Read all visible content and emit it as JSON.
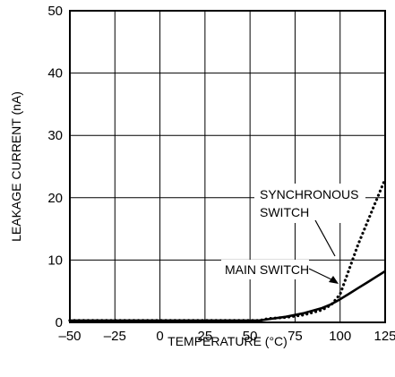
{
  "chart_data": {
    "type": "line",
    "title": "",
    "xlabel": "TEMPERATURE (°C)",
    "ylabel": "LEAKAGE CURRENT (nA)",
    "xlim": [
      -50,
      125
    ],
    "ylim": [
      0,
      50
    ],
    "xticks": [
      -50,
      -25,
      0,
      25,
      50,
      75,
      100,
      125
    ],
    "xtick_labels": [
      "–50",
      "–25",
      "0",
      "25",
      "50",
      "75",
      "100",
      "125"
    ],
    "yticks": [
      0,
      10,
      20,
      30,
      40,
      50
    ],
    "ytick_labels": [
      "0",
      "10",
      "20",
      "30",
      "40",
      "50"
    ],
    "grid": true,
    "legend": "none",
    "series": [
      {
        "name": "SYNCHRONOUS SWITCH",
        "style": "dotted",
        "x": [
          -50,
          0,
          50,
          55,
          60,
          70,
          80,
          90,
          95,
          100,
          105,
          110,
          115,
          120,
          125
        ],
        "y": [
          0.3,
          0.3,
          0.3,
          0.3,
          0.6,
          0.8,
          1.2,
          2.0,
          2.8,
          4.5,
          8.5,
          12.5,
          16.0,
          19.5,
          23.0
        ]
      },
      {
        "name": "MAIN SWITCH",
        "style": "solid",
        "x": [
          -50,
          0,
          50,
          55,
          60,
          70,
          80,
          90,
          95,
          100,
          105,
          110,
          115,
          120,
          125
        ],
        "y": [
          0.3,
          0.3,
          0.3,
          0.3,
          0.5,
          0.9,
          1.5,
          2.3,
          2.9,
          3.7,
          4.6,
          5.5,
          6.4,
          7.3,
          8.2
        ]
      }
    ],
    "annotations": [
      {
        "lines": [
          "SYNCHRONOUS",
          "SWITCH"
        ],
        "points_to": "SYNCHRONOUS SWITCH"
      },
      {
        "lines": [
          "MAIN SWITCH"
        ],
        "points_to": "MAIN SWITCH"
      }
    ]
  }
}
